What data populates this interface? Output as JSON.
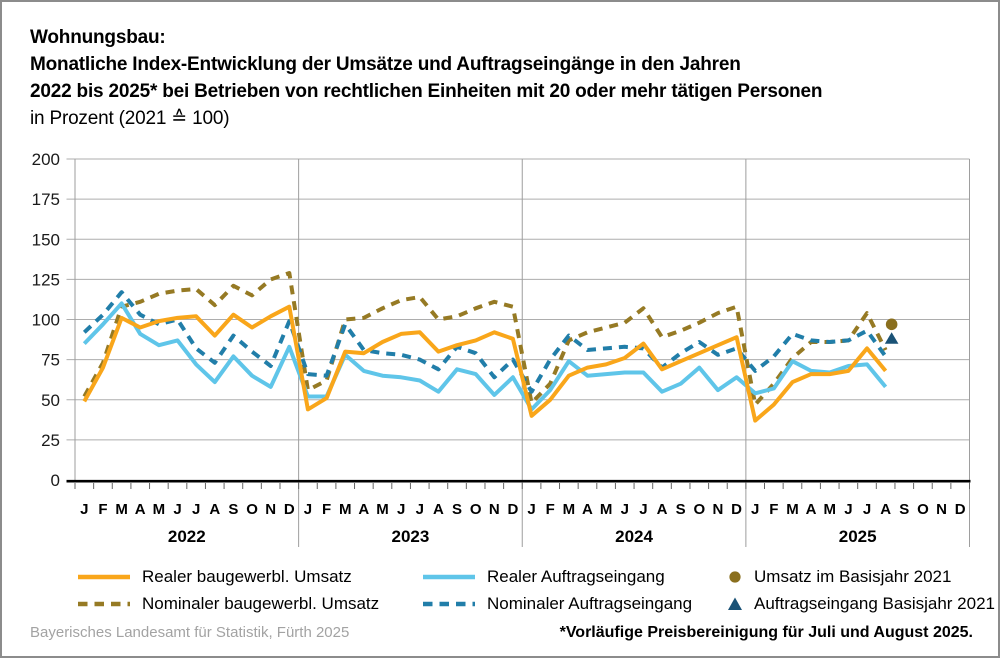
{
  "title": {
    "line1": "Wohnungsbau:",
    "line2": "Monatliche Index-Entwicklung der Umsätze und Auftragseingänge in den Jahren",
    "line3": "2022 bis 2025* bei Betrieben von rechtlichen Einheiten mit 20 oder mehr tätigen Personen",
    "line4": "in Prozent (2021 ≙ 100)"
  },
  "chart_data": {
    "type": "line",
    "title": "Wohnungsbau: Monatliche Index-Entwicklung der Umsätze und Auftragseingänge in den Jahren 2022 bis 2025 bei Betrieben von rechtlichen Einheiten mit 20 oder mehr tätigen Personen in Prozent (2021 ≙ 100)",
    "xlabel": "",
    "ylabel": "",
    "ylim": [
      0,
      200
    ],
    "yticks": [
      0,
      25,
      50,
      75,
      100,
      125,
      150,
      175,
      200
    ],
    "grid": true,
    "month_letters": [
      "J",
      "F",
      "M",
      "A",
      "M",
      "J",
      "J",
      "A",
      "S",
      "O",
      "N",
      "D"
    ],
    "years": [
      "2022",
      "2023",
      "2024",
      "2025"
    ],
    "months_per_year": 12,
    "axis_slots": 48,
    "series": [
      {
        "name": "Realer baugewerbl. Umsatz",
        "color": "#F9A61A",
        "dash": false,
        "values": [
          49,
          70,
          101,
          95,
          99,
          101,
          102,
          90,
          103,
          95,
          102,
          108,
          44,
          51,
          80,
          79,
          86,
          91,
          92,
          80,
          84,
          87,
          92,
          88,
          40,
          50,
          65,
          70,
          72,
          76,
          85,
          69,
          74,
          79,
          84,
          89,
          37,
          47,
          61,
          66,
          66,
          68,
          82,
          68
        ]
      },
      {
        "name": "Nominaler baugewerbl. Umsatz",
        "color": "#967A24",
        "dash": true,
        "values": [
          52,
          73,
          108,
          111,
          116,
          118,
          119,
          109,
          121,
          115,
          125,
          129,
          56,
          62,
          100,
          101,
          107,
          112,
          114,
          100,
          102,
          107,
          111,
          108,
          48,
          60,
          87,
          92,
          95,
          98,
          107,
          89,
          93,
          98,
          104,
          108,
          47,
          60,
          76,
          86,
          86,
          87,
          104,
          81
        ]
      },
      {
        "name": "Realer Auftragseingang",
        "color": "#5FC5E9",
        "dash": false,
        "values": [
          85,
          97,
          110,
          91,
          84,
          87,
          72,
          61,
          77,
          65,
          58,
          83,
          52,
          52,
          78,
          68,
          65,
          64,
          62,
          55,
          69,
          66,
          53,
          64,
          44,
          56,
          74,
          65,
          66,
          67,
          67,
          55,
          60,
          70,
          56,
          64,
          54,
          57,
          74,
          68,
          67,
          71,
          72,
          58
        ]
      },
      {
        "name": "Nominaler Auftragseingang",
        "color": "#217EA9",
        "dash": true,
        "values": [
          92,
          103,
          117,
          103,
          97,
          100,
          82,
          73,
          90,
          80,
          71,
          99,
          66,
          65,
          97,
          81,
          79,
          78,
          75,
          69,
          83,
          79,
          64,
          75,
          55,
          75,
          90,
          81,
          82,
          83,
          82,
          70,
          79,
          86,
          78,
          82,
          68,
          77,
          91,
          87,
          86,
          87,
          93,
          77
        ]
      }
    ],
    "point_markers": [
      {
        "name": "Umsatz im Basisjahr 2021",
        "shape": "circle",
        "color": "#8A6F1E",
        "month_index": 43,
        "value": 97
      },
      {
        "name": "Auftragseingang Basisjahr 2021",
        "shape": "triangle",
        "color": "#1A5276",
        "month_index": 43,
        "value": 88
      }
    ],
    "colors": {
      "gridline": "#adadad",
      "separator": "#9e9e9e",
      "axis": "#000000",
      "tick": "#666666"
    }
  },
  "legend": {
    "items": [
      {
        "label": "Realer baugewerbl. Umsatz",
        "swatch": "line",
        "color": "#F9A61A"
      },
      {
        "label": "Nominaler baugewerbl. Umsatz",
        "swatch": "dashed-line",
        "color": "#967A24"
      },
      {
        "label": "Realer Auftragseingang",
        "swatch": "line",
        "color": "#5FC5E9"
      },
      {
        "label": "Nominaler Auftragseingang",
        "swatch": "dashed-line",
        "color": "#217EA9"
      },
      {
        "label": "Umsatz im Basisjahr 2021",
        "swatch": "circle",
        "color": "#8A6F1E"
      },
      {
        "label": "Auftragseingang Basisjahr 2021",
        "swatch": "triangle",
        "color": "#1A5276"
      }
    ]
  },
  "footer": {
    "source": "Bayerisches Landesamt für Statistik, Fürth 2025",
    "footnote": "*Vorläufige Preisbereinigung für Juli und August 2025."
  }
}
